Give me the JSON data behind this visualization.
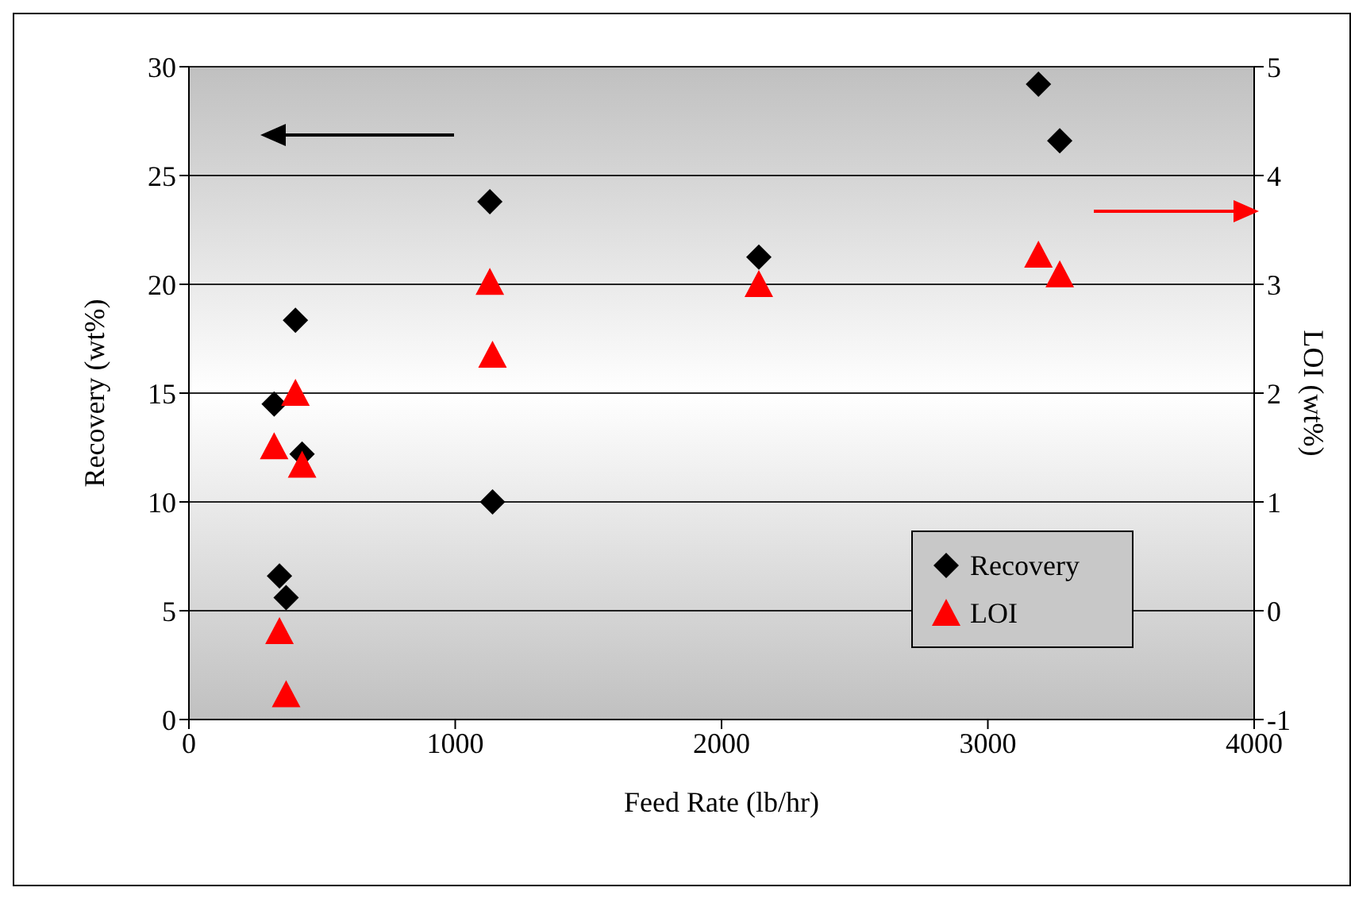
{
  "chart_data": {
    "type": "scatter",
    "xlabel": "Feed Rate (lb/hr)",
    "ylabel": "Recovery (wt%)",
    "y2label": "LOI (wt%)",
    "x": [
      320,
      340,
      365,
      400,
      425,
      1130,
      1140,
      2140,
      3190,
      3270
    ],
    "series": [
      {
        "name": "Recovery",
        "color": "#000000",
        "marker": "diamond",
        "values": [
          14.5,
          6.6,
          5.6,
          18.35,
          12.2,
          23.8,
          10.0,
          21.25,
          29.2,
          26.6
        ]
      },
      {
        "name": "LOI",
        "color": "#ff0000",
        "marker": "triangle",
        "axis": "y2",
        "values": [
          1.51,
          -0.19,
          -0.77,
          2.0,
          1.34,
          3.02,
          2.35,
          3.0,
          3.27,
          3.09
        ]
      }
    ],
    "xlim": [
      0,
      4000
    ],
    "xticks": [
      0,
      1000,
      2000,
      3000,
      4000
    ],
    "ylim": [
      0,
      30
    ],
    "yticks": [
      0,
      5,
      10,
      15,
      20,
      25,
      30
    ],
    "y2lim": [
      -1,
      5
    ],
    "y2ticks": [
      -1,
      0,
      1,
      2,
      3,
      4,
      5
    ],
    "grid": "y",
    "legend": "bottom right"
  }
}
